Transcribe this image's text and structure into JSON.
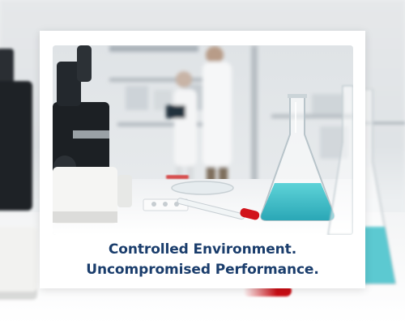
{
  "caption": {
    "line1": "Controlled Environment.",
    "line2": "Uncompromised Performance."
  },
  "colors": {
    "caption_text": "#1a3d6c",
    "frame": "#ffffff",
    "liquid": "#36b9c4",
    "tube_cap": "#c90d14"
  },
  "scene": {
    "description_icons": [
      "microscope-icon",
      "erlenmeyer-flask-icon",
      "test-tube-icon",
      "scientist-icon",
      "clipboard-icon"
    ]
  }
}
